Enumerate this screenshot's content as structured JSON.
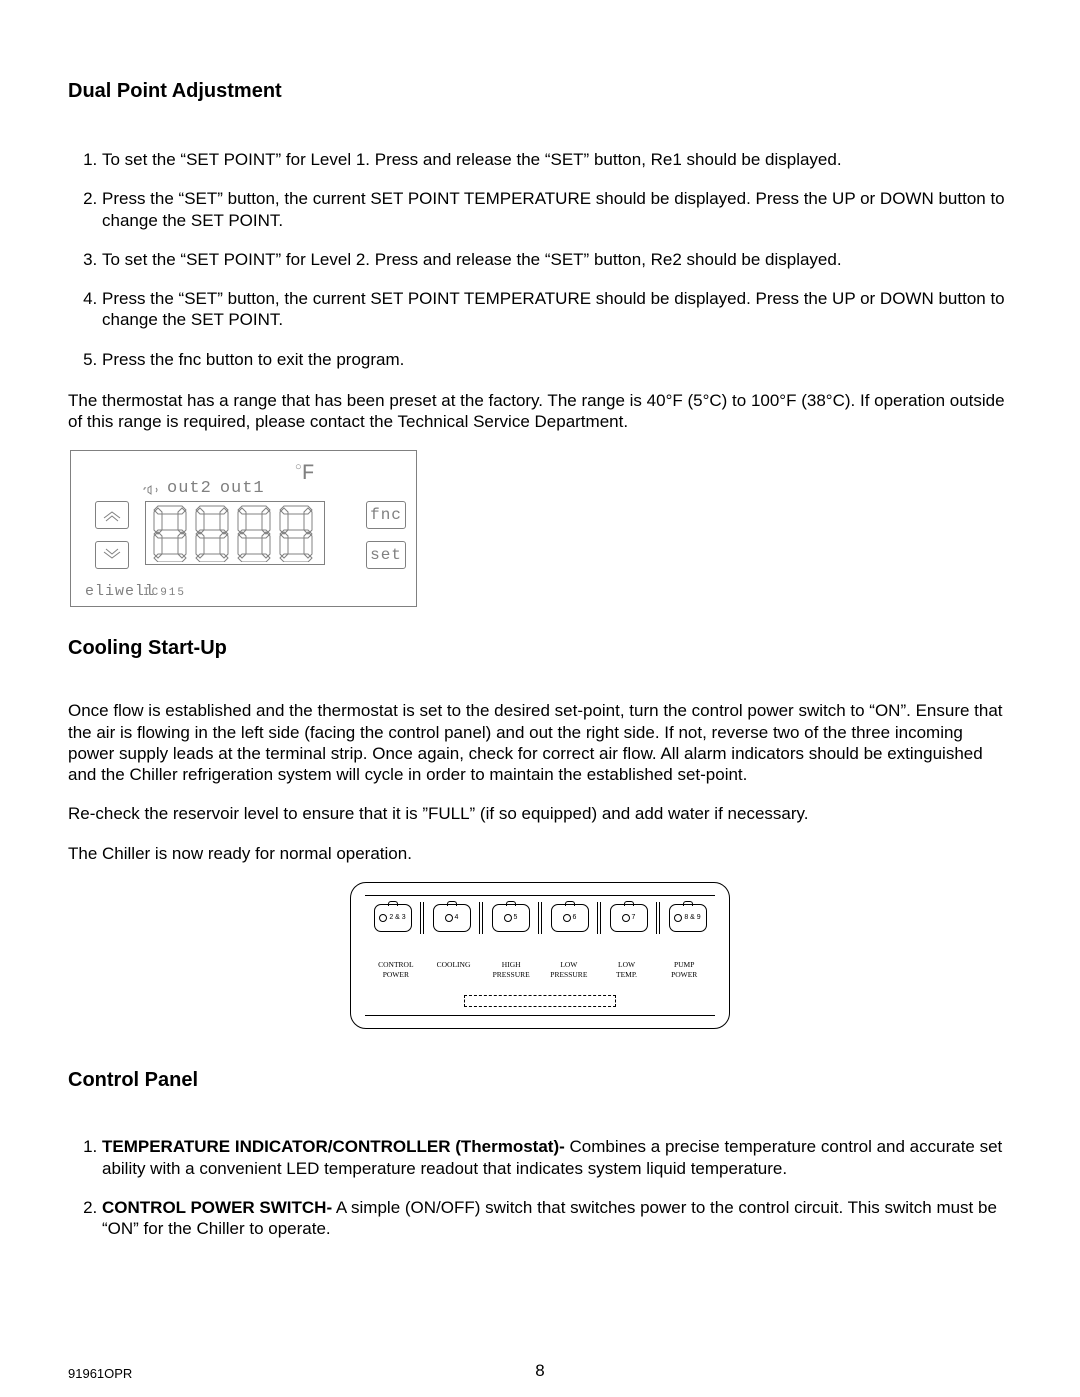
{
  "heading1": "Dual Point Adjustment",
  "steps1": [
    "To set the “SET POINT” for Level 1. Press and release the “SET” button, Re1 should be displayed.",
    "Press the “SET” button, the current SET POINT TEMPERATURE should be displayed. Press the UP or DOWN button to change the SET POINT.",
    "To set the “SET POINT” for Level 2. Press and release the “SET” button, Re2 should be displayed.",
    "Press the “SET” button, the current SET POINT TEMPERATURE should be displayed. Press the UP or DOWN button to change the SET POINT.",
    "Press the fnc button to exit the program."
  ],
  "para_range": "The thermostat has a range that has been preset at the factory. The range is 40°F (5°C) to 100°F (38°C). If operation outside of this range is required, please contact the Technical Service Department.",
  "thermostat": {
    "indicators": [
      "out2",
      "out1"
    ],
    "unit_symbol": "F",
    "btn_fnc": "fnc",
    "btn_set": "set",
    "brand": "eliwell",
    "model": "IC915"
  },
  "heading2": "Cooling Start-Up",
  "para_cooling": "Once flow is established and the thermostat is set to the desired set-point, turn the control power switch to “ON”. Ensure that the air is flowing in the left side (facing the control panel) and out the right side. If not, reverse two of the three incoming power supply leads at the terminal strip. Once again, check for correct air flow. All alarm indicators should be extinguished and the Chiller refrigeration system will cycle in order to maintain the established set-point.",
  "para_recheck": "Re-check the reservoir level to ensure that it is ”FULL” (if so equipped) and add water if necessary.",
  "para_ready": "The Chiller is now ready for normal operation.",
  "panel": {
    "switches": [
      "2 & 3",
      "4",
      "5",
      "6",
      "7",
      "8 & 9"
    ],
    "labels": [
      "CONTROL\nPOWER",
      "COOLING",
      "HIGH\nPRESSURE",
      "LOW\nPRESSURE",
      "LOW\nTEMP.",
      "PUMP\nPOWER"
    ]
  },
  "heading3": "Control Panel",
  "steps3": [
    {
      "bold": "TEMPERATURE INDICATOR/CONTROLLER (Thermostat)-",
      "rest": " Combines a precise temperature control and accurate set ability with a convenient LED temperature readout that indicates system liquid temperature."
    },
    {
      "bold": "CONTROL POWER SWITCH-",
      "rest": " A simple (ON/OFF) switch that switches power to the control circuit. This switch must be “ON” for the Chiller to operate."
    }
  ],
  "footer": {
    "doc": "91961OPR",
    "page": "8"
  },
  "colors": {
    "text": "#000000",
    "figure_gray": "#808080",
    "bg": "#ffffff"
  }
}
